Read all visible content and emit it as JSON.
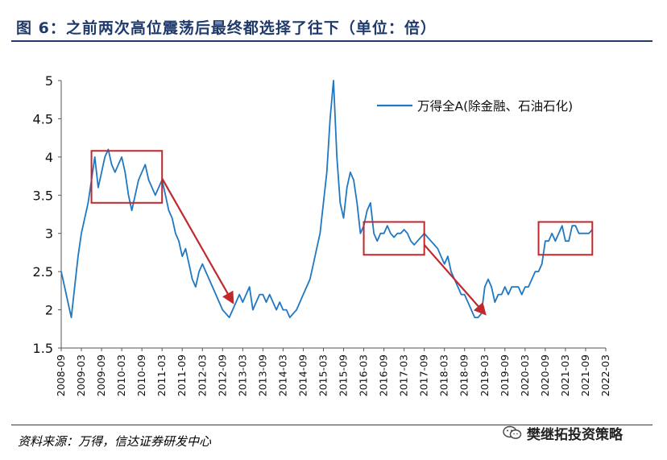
{
  "title": "图 6：之前两次高位震荡后最终都选择了往下（单位：倍）",
  "source": "资料来源：万得，信达证券研发中心",
  "watermark": "樊继拓投资策略",
  "chart_data": {
    "type": "line",
    "ylim": [
      1.5,
      5
    ],
    "yticks": [
      "5",
      "4.5",
      "4",
      "3.5",
      "3",
      "2.5",
      "2",
      "1.5"
    ],
    "ytick_values": [
      5,
      4.5,
      4,
      3.5,
      3,
      2.5,
      2,
      1.5
    ],
    "xlim": [
      "2008-09",
      "2022-03"
    ],
    "xticks": [
      "2008-09",
      "2009-03",
      "2009-09",
      "2010-03",
      "2010-09",
      "2011-03",
      "2011-09",
      "2012-03",
      "2012-09",
      "2013-03",
      "2013-09",
      "2014-03",
      "2014-09",
      "2015-03",
      "2015-09",
      "2016-03",
      "2016-09",
      "2017-03",
      "2017-09",
      "2018-03",
      "2018-09",
      "2019-03",
      "2019-09",
      "2020-03",
      "2020-09",
      "2021-03",
      "2021-09",
      "2022-03"
    ],
    "series": [
      {
        "name": "万得全A(除金融、石油石化)",
        "color": "#1f78c1",
        "x": [
          "2008-09",
          "2008-10",
          "2008-11",
          "2008-12",
          "2009-01",
          "2009-02",
          "2009-03",
          "2009-04",
          "2009-05",
          "2009-06",
          "2009-07",
          "2009-08",
          "2009-09",
          "2009-10",
          "2009-11",
          "2009-12",
          "2010-01",
          "2010-02",
          "2010-03",
          "2010-04",
          "2010-05",
          "2010-06",
          "2010-07",
          "2010-08",
          "2010-09",
          "2010-10",
          "2010-11",
          "2010-12",
          "2011-01",
          "2011-02",
          "2011-03",
          "2011-04",
          "2011-05",
          "2011-06",
          "2011-07",
          "2011-08",
          "2011-09",
          "2011-10",
          "2011-11",
          "2011-12",
          "2012-01",
          "2012-02",
          "2012-03",
          "2012-04",
          "2012-05",
          "2012-06",
          "2012-07",
          "2012-08",
          "2012-09",
          "2012-10",
          "2012-11",
          "2012-12",
          "2013-01",
          "2013-02",
          "2013-03",
          "2013-04",
          "2013-05",
          "2013-06",
          "2013-07",
          "2013-08",
          "2013-09",
          "2013-10",
          "2013-11",
          "2013-12",
          "2014-01",
          "2014-02",
          "2014-03",
          "2014-04",
          "2014-05",
          "2014-06",
          "2014-07",
          "2014-08",
          "2014-09",
          "2014-10",
          "2014-11",
          "2014-12",
          "2015-01",
          "2015-02",
          "2015-03",
          "2015-04",
          "2015-05",
          "2015-06",
          "2015-07",
          "2015-08",
          "2015-09",
          "2015-10",
          "2015-11",
          "2015-12",
          "2016-01",
          "2016-02",
          "2016-03",
          "2016-04",
          "2016-05",
          "2016-06",
          "2016-07",
          "2016-08",
          "2016-09",
          "2016-10",
          "2016-11",
          "2016-12",
          "2017-01",
          "2017-02",
          "2017-03",
          "2017-04",
          "2017-05",
          "2017-06",
          "2017-07",
          "2017-08",
          "2017-09",
          "2017-10",
          "2017-11",
          "2017-12",
          "2018-01",
          "2018-02",
          "2018-03",
          "2018-04",
          "2018-05",
          "2018-06",
          "2018-07",
          "2018-08",
          "2018-09",
          "2018-10",
          "2018-11",
          "2018-12",
          "2019-01",
          "2019-02",
          "2019-03",
          "2019-04",
          "2019-05",
          "2019-06",
          "2019-07",
          "2019-08",
          "2019-09",
          "2019-10",
          "2019-11",
          "2019-12",
          "2020-01",
          "2020-02",
          "2020-03",
          "2020-04",
          "2020-05",
          "2020-06",
          "2020-07",
          "2020-08",
          "2020-09",
          "2020-10",
          "2020-11",
          "2020-12",
          "2021-01",
          "2021-02",
          "2021-03",
          "2021-04",
          "2021-05",
          "2021-06",
          "2021-07",
          "2021-08",
          "2021-09",
          "2021-10",
          "2021-11"
        ],
        "values": [
          2.5,
          2.3,
          2.1,
          1.9,
          2.3,
          2.7,
          3.0,
          3.2,
          3.4,
          3.7,
          4.0,
          3.6,
          3.8,
          4.0,
          4.1,
          3.9,
          3.8,
          3.9,
          4.0,
          3.8,
          3.5,
          3.3,
          3.5,
          3.7,
          3.8,
          3.9,
          3.7,
          3.6,
          3.5,
          3.6,
          3.7,
          3.5,
          3.3,
          3.2,
          3.0,
          2.9,
          2.7,
          2.8,
          2.6,
          2.4,
          2.3,
          2.5,
          2.6,
          2.5,
          2.4,
          2.3,
          2.2,
          2.1,
          2.0,
          1.95,
          1.9,
          2.0,
          2.1,
          2.2,
          2.1,
          2.2,
          2.3,
          2.0,
          2.1,
          2.2,
          2.2,
          2.1,
          2.2,
          2.1,
          2.0,
          2.1,
          2.0,
          2.0,
          1.9,
          1.95,
          2.0,
          2.1,
          2.2,
          2.3,
          2.4,
          2.6,
          2.8,
          3.0,
          3.4,
          3.8,
          4.5,
          5.0,
          4.0,
          3.4,
          3.2,
          3.6,
          3.8,
          3.7,
          3.4,
          3.0,
          3.1,
          3.3,
          3.4,
          3.0,
          2.9,
          3.0,
          3.0,
          3.1,
          3.0,
          2.95,
          3.0,
          3.0,
          3.05,
          3.0,
          2.9,
          2.85,
          2.9,
          2.95,
          3.0,
          2.95,
          2.9,
          2.85,
          2.8,
          2.7,
          2.6,
          2.7,
          2.5,
          2.4,
          2.3,
          2.2,
          2.2,
          2.1,
          2.0,
          1.9,
          1.9,
          1.95,
          2.3,
          2.4,
          2.3,
          2.1,
          2.2,
          2.2,
          2.3,
          2.2,
          2.3,
          2.3,
          2.3,
          2.2,
          2.3,
          2.3,
          2.4,
          2.5,
          2.5,
          2.6,
          2.9,
          2.9,
          3.0,
          2.9,
          3.0,
          3.1,
          2.9,
          2.9,
          3.1,
          3.1,
          3.0,
          3.0,
          3.0,
          3.0,
          3.05
        ]
      }
    ],
    "annotations": {
      "boxes": [
        {
          "x0": "2009-06",
          "x1": "2011-03",
          "y0": 3.4,
          "y1": 4.08
        },
        {
          "x0": "2016-03",
          "x1": "2017-09",
          "y0": 2.72,
          "y1": 3.15
        },
        {
          "x0": "2020-07",
          "x1": "2021-11",
          "y0": 2.72,
          "y1": 3.15
        }
      ],
      "arrows": [
        {
          "x0": "2011-03",
          "y0": 3.72,
          "x1": "2012-12",
          "y1": 2.1
        },
        {
          "x0": "2017-09",
          "y0": 2.85,
          "x1": "2019-03",
          "y1": 1.95
        }
      ]
    }
  }
}
